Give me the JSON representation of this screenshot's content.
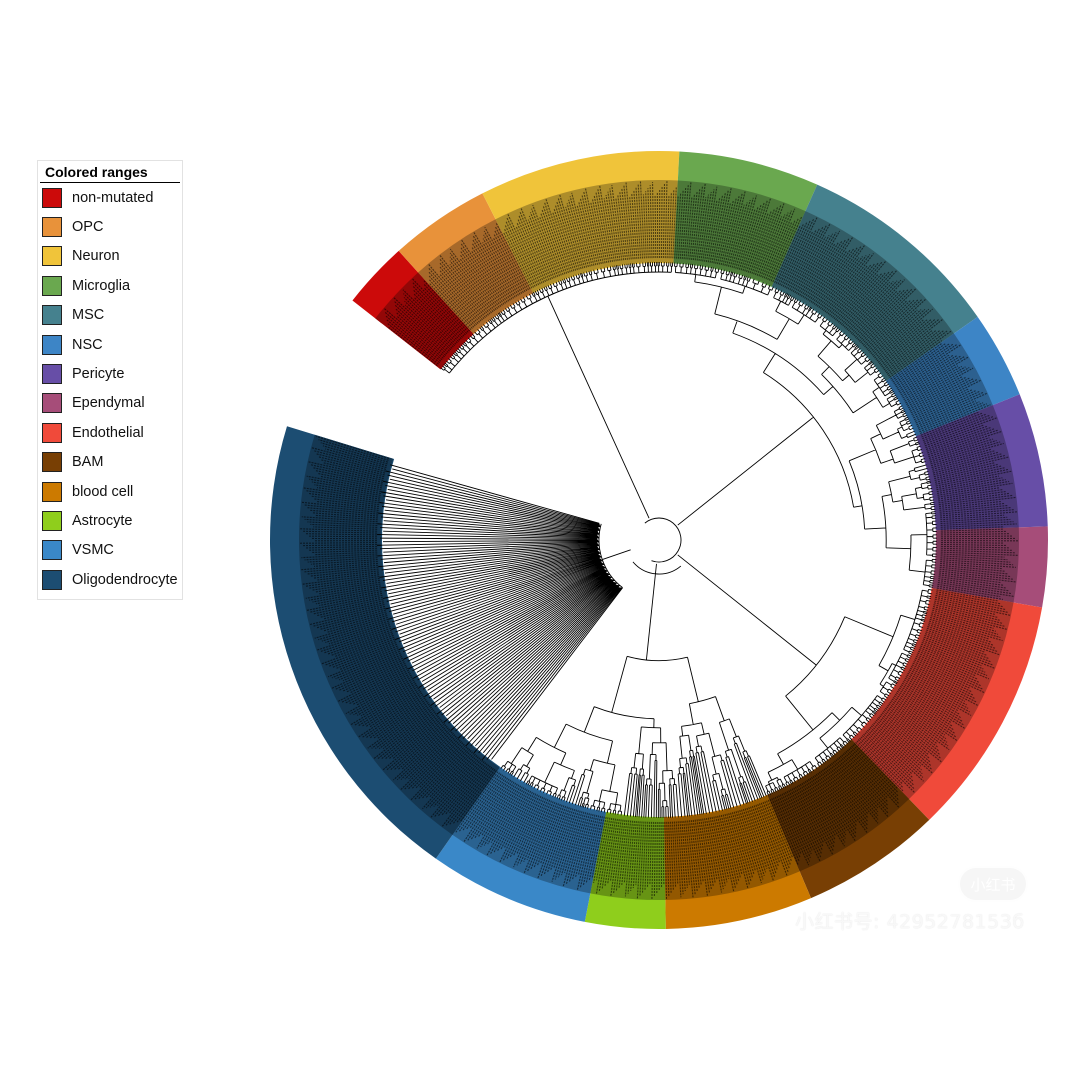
{
  "legend": {
    "title": "Colored ranges",
    "items": [
      {
        "label": "non-mutated",
        "color": "#cc0a0a"
      },
      {
        "label": "OPC",
        "color": "#e8923a"
      },
      {
        "label": "Neuron",
        "color": "#f0c43a"
      },
      {
        "label": "Microglia",
        "color": "#6aa84f"
      },
      {
        "label": "MSC",
        "color": "#45818e"
      },
      {
        "label": "NSC",
        "color": "#3d85c6"
      },
      {
        "label": "Pericyte",
        "color": "#674ea7"
      },
      {
        "label": "Ependymal",
        "color": "#a64d79"
      },
      {
        "label": "Endothelial",
        "color": "#f04a3a"
      },
      {
        "label": "BAM",
        "color": "#783f04"
      },
      {
        "label": "blood cell",
        "color": "#cc7a00"
      },
      {
        "label": "Astrocyte",
        "color": "#8fce1c"
      },
      {
        "label": "VSMC",
        "color": "#3a88c8"
      },
      {
        "label": "Oligodendrocyte",
        "color": "#1c4d72"
      }
    ]
  },
  "ranges": [
    {
      "group": "non-mutated",
      "color": "#cc0a0a",
      "start_deg": -52,
      "end_deg": -42
    },
    {
      "group": "OPC",
      "color": "#e8923a",
      "start_deg": -42,
      "end_deg": -27
    },
    {
      "group": "Neuron",
      "color": "#f0c43a",
      "start_deg": -27,
      "end_deg": 3
    },
    {
      "group": "Microglia",
      "color": "#6aa84f",
      "start_deg": 3,
      "end_deg": 24
    },
    {
      "group": "MSC",
      "color": "#45818e",
      "start_deg": 24,
      "end_deg": 55
    },
    {
      "group": "NSC",
      "color": "#3d85c6",
      "start_deg": 55,
      "end_deg": 68
    },
    {
      "group": "Pericyte",
      "color": "#674ea7",
      "start_deg": 68,
      "end_deg": 88
    },
    {
      "group": "Ependymal",
      "color": "#a64d79",
      "start_deg": 88,
      "end_deg": 100
    },
    {
      "group": "Endothelial",
      "color": "#f04a3a",
      "start_deg": 100,
      "end_deg": 136
    },
    {
      "group": "BAM",
      "color": "#783f04",
      "start_deg": 136,
      "end_deg": 157
    },
    {
      "group": "blood cell",
      "color": "#cc7a00",
      "start_deg": 157,
      "end_deg": 179
    },
    {
      "group": "Astrocyte",
      "color": "#8fce1c",
      "start_deg": 179,
      "end_deg": 191
    },
    {
      "group": "VSMC",
      "color": "#3a88c8",
      "start_deg": 191,
      "end_deg": 215
    },
    {
      "group": "Oligodendrocyte",
      "color": "#1c4d72",
      "start_deg": 215,
      "end_deg": 287
    }
  ],
  "watermark": {
    "text": "小红书号: 4295278153б",
    "badge": "小红书"
  }
}
